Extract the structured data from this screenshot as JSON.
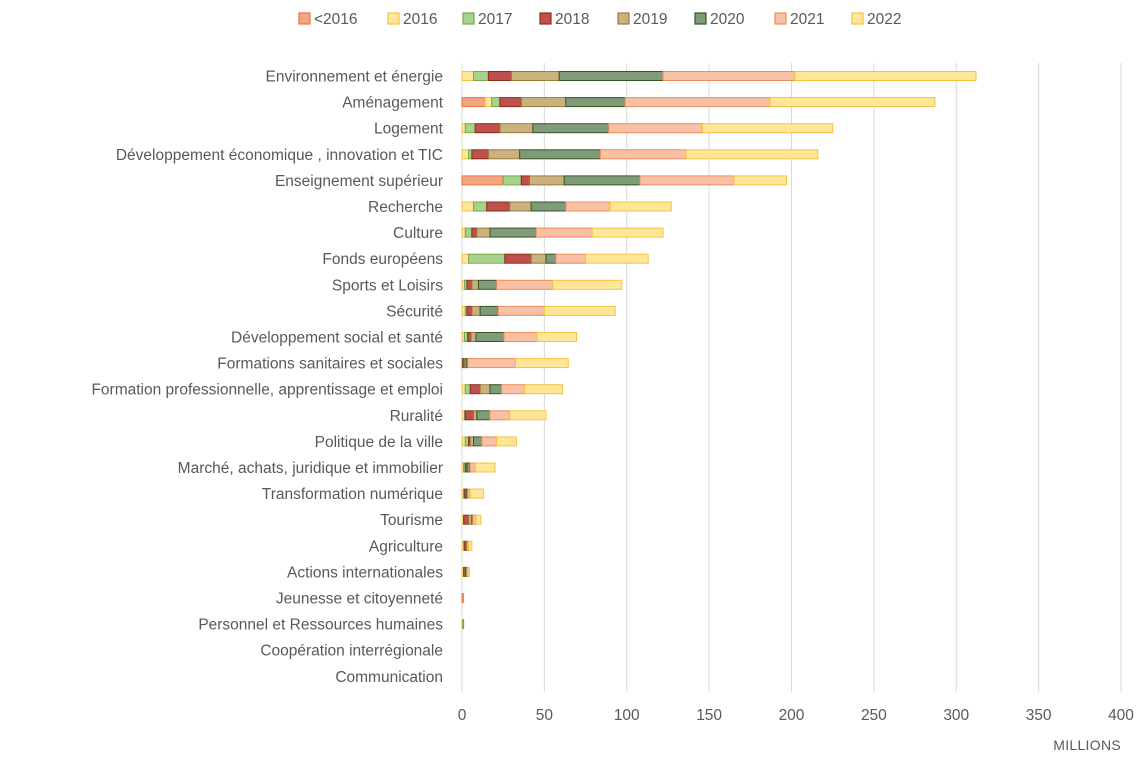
{
  "chart_data": {
    "type": "bar",
    "orientation": "horizontal",
    "stacked": true,
    "x_unit_label": "MILLIONS",
    "xlim": [
      0,
      400
    ],
    "x_ticks": [
      0,
      50,
      100,
      150,
      200,
      250,
      300,
      350,
      400
    ],
    "grid": "vertical",
    "legend_position": "top",
    "categories": [
      "Environnement et énergie",
      "Aménagement",
      "Logement",
      "Développement économique , innovation et TIC",
      "Enseignement supérieur",
      "Recherche",
      "Culture",
      "Fonds européens",
      "Sports et Loisirs",
      "Sécurité",
      "Développement social et santé",
      "Formations sanitaires et sociales",
      "Formation professionnelle, apprentissage et emploi",
      "Ruralité",
      "Politique de la ville",
      "Marché, achats, juridique et immobilier",
      "Transformation numérique",
      "Tourisme",
      "Agriculture",
      "Actions internationales",
      "Jeunesse et citoyenneté",
      "Personnel et Ressources humaines",
      "Coopération interrégionale",
      "Communication"
    ],
    "series": [
      {
        "name": "<2016",
        "fill": "#f4a582",
        "stroke": "#e8743b",
        "values": [
          0,
          14,
          0,
          0,
          25,
          0,
          0,
          0,
          0,
          0,
          0,
          0,
          0,
          0,
          0,
          0,
          0,
          0,
          0,
          0,
          0.5,
          0,
          0,
          0
        ]
      },
      {
        "name": "2016",
        "fill": "#ffe699",
        "stroke": "#f5c342",
        "values": [
          7,
          4,
          2,
          4,
          0,
          7,
          2,
          4,
          1.5,
          2,
          1.5,
          0,
          2,
          1.5,
          2,
          1,
          1,
          1,
          1,
          1,
          0,
          0.5,
          0,
          0
        ]
      },
      {
        "name": "2017",
        "fill": "#a9d18e",
        "stroke": "#70ad47",
        "values": [
          9,
          5,
          6,
          2,
          11,
          8,
          4,
          22,
          1.5,
          1,
          2,
          0.5,
          3,
          0.5,
          2,
          1,
          0.5,
          0,
          0.5,
          0,
          0,
          0.5,
          0,
          0
        ]
      },
      {
        "name": "2018",
        "fill": "#c0504d",
        "stroke": "#8c2d19",
        "values": [
          14,
          13,
          15,
          10,
          5,
          14,
          3,
          16,
          3,
          3,
          2,
          1,
          6,
          5,
          1,
          0.5,
          0.5,
          3,
          0.5,
          0.5,
          0,
          0,
          0,
          0
        ]
      },
      {
        "name": "2019",
        "fill": "#c9b27c",
        "stroke": "#9c7a3c",
        "values": [
          29,
          27,
          20,
          19,
          21,
          13,
          8,
          9,
          4,
          5,
          3,
          1,
          6,
          2,
          2,
          0.5,
          0.5,
          2,
          0.5,
          0.5,
          0,
          0,
          0,
          0
        ]
      },
      {
        "name": "2020",
        "fill": "#7f9b7a",
        "stroke": "#375623",
        "values": [
          63,
          36,
          46,
          49,
          46,
          21,
          28,
          6,
          11,
          11,
          17,
          1,
          7,
          8,
          5,
          2,
          1,
          0.5,
          0.5,
          1,
          0,
          0,
          0,
          0
        ]
      },
      {
        "name": "2021",
        "fill": "#f8c0a4",
        "stroke": "#f08c5a",
        "values": [
          80,
          88,
          57,
          52,
          57,
          27,
          34,
          18,
          34,
          28,
          20,
          29,
          14,
          12,
          9,
          3,
          1.5,
          2,
          1,
          0.5,
          0.5,
          0,
          0,
          0
        ]
      },
      {
        "name": "2022",
        "fill": "#ffe699",
        "stroke": "#f5c342",
        "values": [
          110,
          100,
          79,
          80,
          32,
          37,
          43,
          38,
          42,
          43,
          24,
          32,
          23,
          22,
          12,
          12,
          8,
          3,
          2,
          1,
          0,
          0,
          0,
          0
        ]
      }
    ]
  }
}
